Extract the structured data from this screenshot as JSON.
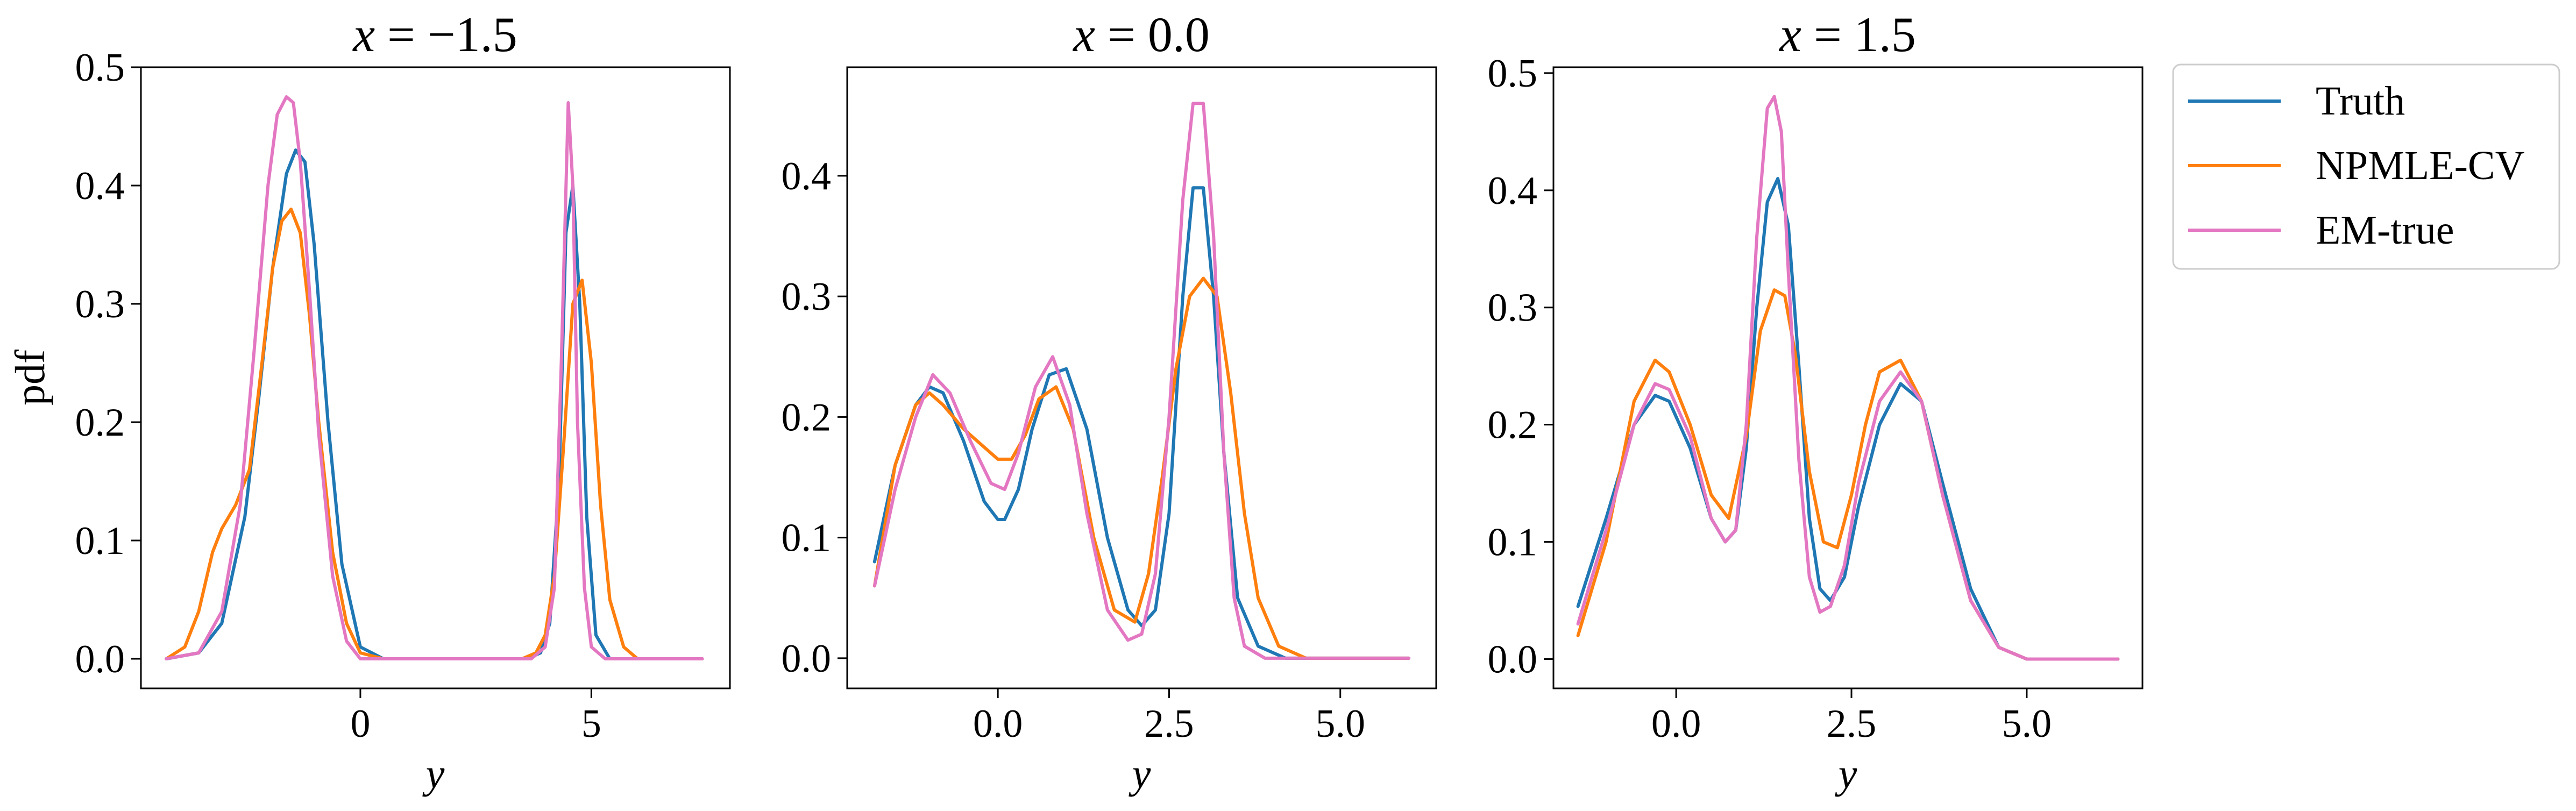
{
  "chart_data": [
    {
      "type": "line",
      "title": "x = −1.5",
      "title_var": "x",
      "title_rest": " = −1.5",
      "xlabel": "y",
      "ylabel": "pdf",
      "xlim": [
        -4.75,
        8.0
      ],
      "ylim": [
        -0.025,
        0.5
      ],
      "xticks": [
        0,
        5
      ],
      "xtick_labels": [
        "0",
        "5"
      ],
      "yticks": [
        0.0,
        0.1,
        0.2,
        0.3,
        0.4,
        0.5
      ],
      "ytick_labels": [
        "0.0",
        "0.1",
        "0.2",
        "0.3",
        "0.4",
        "0.5"
      ],
      "series": [
        {
          "name": "Truth",
          "x": [
            -4.2,
            -3.5,
            -3.0,
            -2.5,
            -2.2,
            -1.9,
            -1.6,
            -1.4,
            -1.2,
            -1.0,
            -0.7,
            -0.4,
            0.0,
            0.5,
            1.0,
            2.0,
            3.0,
            3.6,
            3.9,
            4.1,
            4.3,
            4.45,
            4.6,
            4.75,
            4.9,
            5.1,
            5.4,
            6.0,
            7.4
          ],
          "y": [
            0.0,
            0.005,
            0.03,
            0.12,
            0.22,
            0.33,
            0.41,
            0.43,
            0.42,
            0.35,
            0.2,
            0.08,
            0.01,
            0.0,
            0.0,
            0.0,
            0.0,
            0.0,
            0.005,
            0.03,
            0.15,
            0.36,
            0.4,
            0.3,
            0.12,
            0.02,
            0.0,
            0.0,
            0.0
          ]
        },
        {
          "name": "NPMLE-CV",
          "x": [
            -4.2,
            -3.8,
            -3.5,
            -3.2,
            -3.0,
            -2.7,
            -2.4,
            -2.1,
            -1.9,
            -1.7,
            -1.5,
            -1.3,
            -1.1,
            -0.9,
            -0.6,
            -0.3,
            0.0,
            0.5,
            1.0,
            2.0,
            3.0,
            3.5,
            3.8,
            4.0,
            4.2,
            4.4,
            4.6,
            4.8,
            5.0,
            5.2,
            5.4,
            5.7,
            6.0,
            7.4
          ],
          "y": [
            0.0,
            0.01,
            0.04,
            0.09,
            0.11,
            0.13,
            0.16,
            0.26,
            0.33,
            0.37,
            0.38,
            0.36,
            0.29,
            0.2,
            0.09,
            0.03,
            0.005,
            0.0,
            0.0,
            0.0,
            0.0,
            0.0,
            0.005,
            0.02,
            0.07,
            0.18,
            0.3,
            0.32,
            0.25,
            0.13,
            0.05,
            0.01,
            0.0,
            0.0
          ]
        },
        {
          "name": "EM-true",
          "x": [
            -4.2,
            -3.5,
            -3.0,
            -2.6,
            -2.3,
            -2.0,
            -1.8,
            -1.6,
            -1.45,
            -1.3,
            -1.1,
            -0.9,
            -0.6,
            -0.3,
            0.0,
            0.5,
            1.0,
            2.0,
            3.0,
            3.7,
            4.0,
            4.2,
            4.35,
            4.5,
            4.6,
            4.7,
            4.85,
            5.0,
            5.3,
            6.0,
            7.4
          ],
          "y": [
            0.0,
            0.005,
            0.04,
            0.13,
            0.26,
            0.4,
            0.46,
            0.475,
            0.47,
            0.42,
            0.31,
            0.19,
            0.07,
            0.015,
            0.0,
            0.0,
            0.0,
            0.0,
            0.0,
            0.0,
            0.01,
            0.06,
            0.25,
            0.47,
            0.4,
            0.2,
            0.06,
            0.01,
            0.0,
            0.0,
            0.0
          ]
        }
      ]
    },
    {
      "type": "line",
      "title": "x = 0.0",
      "title_var": "x",
      "title_rest": " = 0.0",
      "xlabel": "y",
      "ylabel": "",
      "xlim": [
        -2.2,
        6.4
      ],
      "ylim": [
        -0.025,
        0.49
      ],
      "xticks": [
        0.0,
        2.5,
        5.0
      ],
      "xtick_labels": [
        "0.0",
        "2.5",
        "5.0"
      ],
      "yticks": [
        0.0,
        0.1,
        0.2,
        0.3,
        0.4
      ],
      "ytick_labels": [
        "0.0",
        "0.1",
        "0.2",
        "0.3",
        "0.4"
      ],
      "series": [
        {
          "name": "Truth",
          "x": [
            -1.8,
            -1.5,
            -1.2,
            -1.0,
            -0.8,
            -0.5,
            -0.2,
            0.0,
            0.1,
            0.3,
            0.5,
            0.75,
            1.0,
            1.3,
            1.6,
            1.9,
            2.1,
            2.3,
            2.5,
            2.7,
            2.85,
            3.0,
            3.15,
            3.3,
            3.5,
            3.8,
            4.2,
            5.0,
            6.0
          ],
          "y": [
            0.08,
            0.16,
            0.21,
            0.225,
            0.22,
            0.18,
            0.13,
            0.115,
            0.115,
            0.14,
            0.19,
            0.235,
            0.24,
            0.19,
            0.1,
            0.04,
            0.027,
            0.04,
            0.12,
            0.3,
            0.39,
            0.39,
            0.3,
            0.17,
            0.05,
            0.01,
            0.0,
            0.0,
            0.0
          ]
        },
        {
          "name": "NPMLE-CV",
          "x": [
            -1.8,
            -1.5,
            -1.2,
            -1.0,
            -0.8,
            -0.5,
            -0.2,
            0.0,
            0.2,
            0.4,
            0.6,
            0.85,
            1.1,
            1.4,
            1.7,
            2.0,
            2.2,
            2.4,
            2.6,
            2.8,
            3.0,
            3.2,
            3.4,
            3.6,
            3.8,
            4.1,
            4.5,
            5.0,
            6.0
          ],
          "y": [
            0.06,
            0.16,
            0.21,
            0.22,
            0.21,
            0.19,
            0.175,
            0.165,
            0.165,
            0.185,
            0.215,
            0.225,
            0.19,
            0.1,
            0.04,
            0.03,
            0.07,
            0.15,
            0.24,
            0.3,
            0.315,
            0.3,
            0.22,
            0.12,
            0.05,
            0.01,
            0.0,
            0.0,
            0.0
          ]
        },
        {
          "name": "EM-true",
          "x": [
            -1.8,
            -1.5,
            -1.2,
            -0.95,
            -0.7,
            -0.4,
            -0.1,
            0.1,
            0.3,
            0.55,
            0.8,
            1.05,
            1.3,
            1.6,
            1.9,
            2.1,
            2.3,
            2.5,
            2.7,
            2.85,
            3.0,
            3.15,
            3.3,
            3.45,
            3.6,
            3.9,
            4.5,
            6.0
          ],
          "y": [
            0.06,
            0.14,
            0.2,
            0.235,
            0.22,
            0.18,
            0.145,
            0.14,
            0.17,
            0.225,
            0.25,
            0.21,
            0.12,
            0.04,
            0.015,
            0.02,
            0.07,
            0.2,
            0.38,
            0.46,
            0.46,
            0.35,
            0.17,
            0.05,
            0.01,
            0.0,
            0.0,
            0.0
          ]
        }
      ]
    },
    {
      "type": "line",
      "title": "x = 1.5",
      "title_var": "x",
      "title_rest": " = 1.5",
      "xlabel": "y",
      "ylabel": "",
      "xlim": [
        -1.75,
        6.65
      ],
      "ylim": [
        -0.025,
        0.505
      ],
      "xticks": [
        0.0,
        2.5,
        5.0
      ],
      "xtick_labels": [
        "0.0",
        "2.5",
        "5.0"
      ],
      "yticks": [
        0.0,
        0.1,
        0.2,
        0.3,
        0.4,
        0.5
      ],
      "ytick_labels": [
        "0.0",
        "0.1",
        "0.2",
        "0.3",
        "0.4",
        "0.5"
      ],
      "series": [
        {
          "name": "Truth",
          "x": [
            -1.4,
            -1.0,
            -0.6,
            -0.3,
            -0.1,
            0.2,
            0.5,
            0.7,
            0.85,
            1.0,
            1.15,
            1.3,
            1.45,
            1.6,
            1.75,
            1.9,
            2.05,
            2.2,
            2.4,
            2.6,
            2.9,
            3.2,
            3.5,
            3.8,
            4.2,
            4.6,
            5.0,
            5.5,
            6.3
          ],
          "y": [
            0.045,
            0.12,
            0.2,
            0.225,
            0.22,
            0.18,
            0.12,
            0.1,
            0.11,
            0.18,
            0.3,
            0.39,
            0.41,
            0.37,
            0.25,
            0.12,
            0.06,
            0.05,
            0.07,
            0.13,
            0.2,
            0.235,
            0.22,
            0.15,
            0.06,
            0.01,
            0.0,
            0.0,
            0.0
          ]
        },
        {
          "name": "NPMLE-CV",
          "x": [
            -1.4,
            -1.0,
            -0.6,
            -0.3,
            -0.1,
            0.2,
            0.5,
            0.75,
            1.0,
            1.2,
            1.4,
            1.55,
            1.7,
            1.9,
            2.1,
            2.3,
            2.5,
            2.7,
            2.9,
            3.2,
            3.5,
            3.8,
            4.2,
            4.6,
            5.0,
            5.5,
            6.3
          ],
          "y": [
            0.02,
            0.1,
            0.22,
            0.255,
            0.245,
            0.2,
            0.14,
            0.12,
            0.19,
            0.28,
            0.315,
            0.31,
            0.26,
            0.16,
            0.1,
            0.095,
            0.14,
            0.2,
            0.245,
            0.255,
            0.22,
            0.14,
            0.05,
            0.01,
            0.0,
            0.0,
            0.0
          ]
        },
        {
          "name": "EM-true",
          "x": [
            -1.4,
            -1.0,
            -0.6,
            -0.3,
            -0.1,
            0.2,
            0.5,
            0.7,
            0.85,
            1.0,
            1.15,
            1.3,
            1.4,
            1.5,
            1.6,
            1.75,
            1.9,
            2.05,
            2.2,
            2.4,
            2.6,
            2.9,
            3.2,
            3.5,
            3.8,
            4.2,
            4.6,
            5.0,
            6.3
          ],
          "y": [
            0.03,
            0.11,
            0.2,
            0.235,
            0.23,
            0.19,
            0.12,
            0.1,
            0.11,
            0.2,
            0.36,
            0.47,
            0.48,
            0.45,
            0.33,
            0.17,
            0.07,
            0.04,
            0.045,
            0.08,
            0.15,
            0.22,
            0.245,
            0.22,
            0.14,
            0.05,
            0.01,
            0.0,
            0.0
          ]
        }
      ]
    }
  ],
  "legend": {
    "placement": "outside-right",
    "items": [
      {
        "label": "Truth",
        "color": "#1f77b4"
      },
      {
        "label": "NPMLE-CV",
        "color": "#ff7f0e"
      },
      {
        "label": "EM-true",
        "color": "#e377c2"
      }
    ]
  },
  "colors": {
    "Truth": "#1f77b4",
    "NPMLE-CV": "#ff7f0e",
    "EM-true": "#e377c2"
  }
}
